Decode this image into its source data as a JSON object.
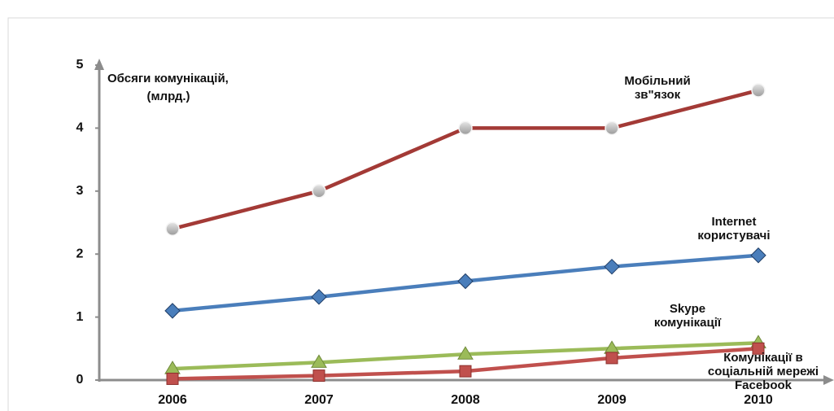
{
  "chart_data": {
    "type": "line",
    "ylabel": [
      "Обсяги комунікацій,",
      "(млрд.)"
    ],
    "categories": [
      "2006",
      "2007",
      "2008",
      "2009",
      "2010"
    ],
    "ylim": [
      0,
      5
    ],
    "yticks": [
      0,
      1,
      2,
      3,
      4,
      5
    ],
    "series": [
      {
        "name": [
          "Мобільний",
          "зв\"язок"
        ],
        "color": "#a33a36",
        "marker": "circle",
        "values": [
          2.4,
          3.0,
          4.0,
          4.0,
          4.6
        ]
      },
      {
        "name": [
          "Internet",
          "користувачі"
        ],
        "color": "#4a7ebb",
        "marker": "diamond",
        "values": [
          1.1,
          1.32,
          1.57,
          1.8,
          1.98
        ]
      },
      {
        "name": [
          "Skype",
          "комунікації"
        ],
        "color": "#9bbb59",
        "marker": "triangle",
        "values": [
          0.18,
          0.28,
          0.41,
          0.5,
          0.59
        ]
      },
      {
        "name": [
          "Комунікації в",
          "соціальній мережі",
          "Facebook"
        ],
        "color": "#c0504d",
        "marker": "square",
        "values": [
          0.02,
          0.07,
          0.14,
          0.35,
          0.5
        ]
      }
    ]
  }
}
